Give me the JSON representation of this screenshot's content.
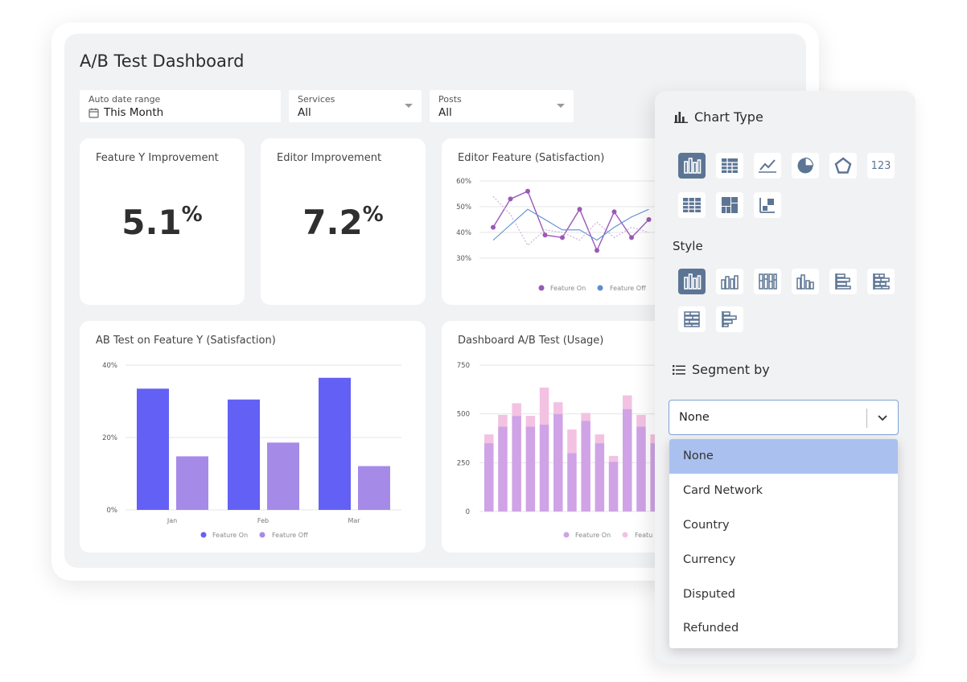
{
  "dashboard": {
    "title": "A/B Test Dashboard",
    "filters": [
      {
        "label": "Auto date range",
        "value": "This Month"
      },
      {
        "label": "Services",
        "value": "All"
      },
      {
        "label": "Posts",
        "value": "All"
      }
    ]
  },
  "kpis": [
    {
      "title": "Feature Y Improvement",
      "value": "5.1",
      "unit": "%"
    },
    {
      "title": "Editor Improvement",
      "value": "7.2",
      "unit": "%"
    }
  ],
  "cards": {
    "editor_feature_title": "Editor Feature (Satisfaction)",
    "ab_test_title": "AB Test on Feature Y (Satisfaction)",
    "usage_title": "Dashboard A/B Test (Usage)"
  },
  "chart_data": [
    {
      "type": "line",
      "title": "Editor Feature (Satisfaction)",
      "y_ticks": [
        "60%",
        "50%",
        "40%",
        "30%"
      ],
      "ylim": [
        25,
        60
      ],
      "series": [
        {
          "name": "Feature On",
          "values": [
            42,
            53,
            56,
            39,
            38,
            49,
            33,
            48,
            38,
            45
          ],
          "color": "#9b59b6"
        },
        {
          "name": "Feature Off",
          "values": [
            37,
            43,
            49,
            45,
            41,
            41,
            37,
            42,
            46,
            49
          ],
          "color": "#5b8fd4"
        },
        {
          "name": "",
          "values": [
            54,
            47,
            35,
            41,
            40,
            37,
            44,
            38,
            42,
            40
          ],
          "color": "#c7a8d9",
          "dashed": true
        }
      ],
      "legend": "bottom"
    },
    {
      "type": "bar",
      "title": "AB Test on Feature Y (Satisfaction)",
      "categories": [
        "Jan",
        "Feb",
        "Mar"
      ],
      "y_ticks": [
        "40%",
        "20%",
        "0%"
      ],
      "ylim": [
        0,
        40
      ],
      "series": [
        {
          "name": "Feature On",
          "values": [
            33.5,
            30.5,
            36.5
          ],
          "color": "#6360f5"
        },
        {
          "name": "Feature Off",
          "values": [
            14.8,
            18.6,
            12.1
          ],
          "color": "#a68ae8"
        }
      ],
      "legend": "bottom"
    },
    {
      "type": "bar",
      "stacked": true,
      "title": "Dashboard A/B Test (Usage)",
      "y_ticks": [
        "750",
        "500",
        "250",
        "0"
      ],
      "ylim": [
        0,
        750
      ],
      "series": [
        {
          "name": "Feature On",
          "values": [
            350,
            435,
            490,
            435,
            445,
            500,
            300,
            465,
            350,
            255,
            525,
            435,
            350
          ],
          "color": "#cfa3e6"
        },
        {
          "name": "Feature Off",
          "values": [
            45,
            60,
            65,
            55,
            190,
            60,
            120,
            40,
            45,
            30,
            70,
            60,
            45
          ],
          "color": "#f3c2e2"
        }
      ],
      "legend": "bottom"
    }
  ],
  "legend_labels": {
    "on": "Feature On",
    "off": "Feature Off",
    "off_truncated": "Featu"
  },
  "panel": {
    "chart_type_title": "Chart Type",
    "chart_type_tiles": [
      "bar-chart-icon",
      "pivot-table-icon",
      "line-chart-icon",
      "pie-chart-icon",
      "radar-chart-icon",
      "number-icon",
      "table-icon",
      "treemap-icon",
      "scatter-icon"
    ],
    "number_label": "123",
    "style_title": "Style",
    "style_tiles": [
      "bar-style-solid-icon",
      "bar-style-grouped-icon",
      "bar-style-stacked-icon",
      "bar-style-dense-icon",
      "bar-style-horizontal-icon",
      "bar-style-horizontal-grouped-icon",
      "bar-style-horizontal-stacked-icon",
      "bar-style-horizontal-dense-icon"
    ],
    "segment_title": "Segment by",
    "selected": "None",
    "options": [
      "None",
      "Card Network",
      "Country",
      "Currency",
      "Disputed",
      "Refunded"
    ]
  }
}
